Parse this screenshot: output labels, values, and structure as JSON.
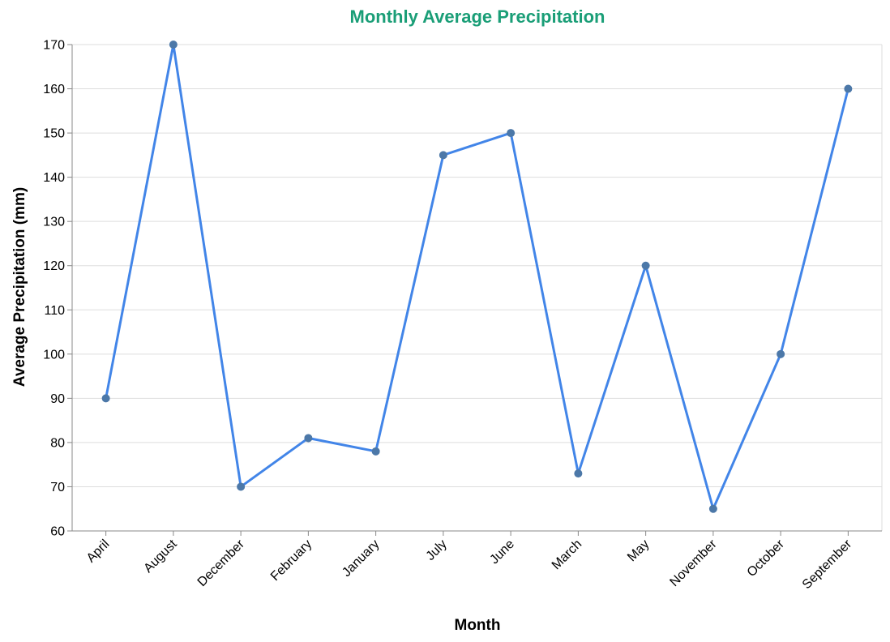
{
  "colors": {
    "title": "#1a9e77",
    "line": "#4285e8",
    "point": "#4c78a8"
  },
  "chart_data": {
    "type": "line",
    "title": "Monthly Average Precipitation",
    "xlabel": "Month",
    "ylabel": "Average Precipitation (mm)",
    "categories": [
      "April",
      "August",
      "December",
      "February",
      "January",
      "July",
      "June",
      "March",
      "May",
      "November",
      "October",
      "September"
    ],
    "values": [
      90,
      170,
      70,
      81,
      78,
      145,
      150,
      73,
      120,
      65,
      100,
      160
    ],
    "ylim": [
      60,
      170
    ],
    "yticks": [
      60,
      70,
      80,
      90,
      100,
      110,
      120,
      130,
      140,
      150,
      160,
      170
    ],
    "grid": true
  }
}
